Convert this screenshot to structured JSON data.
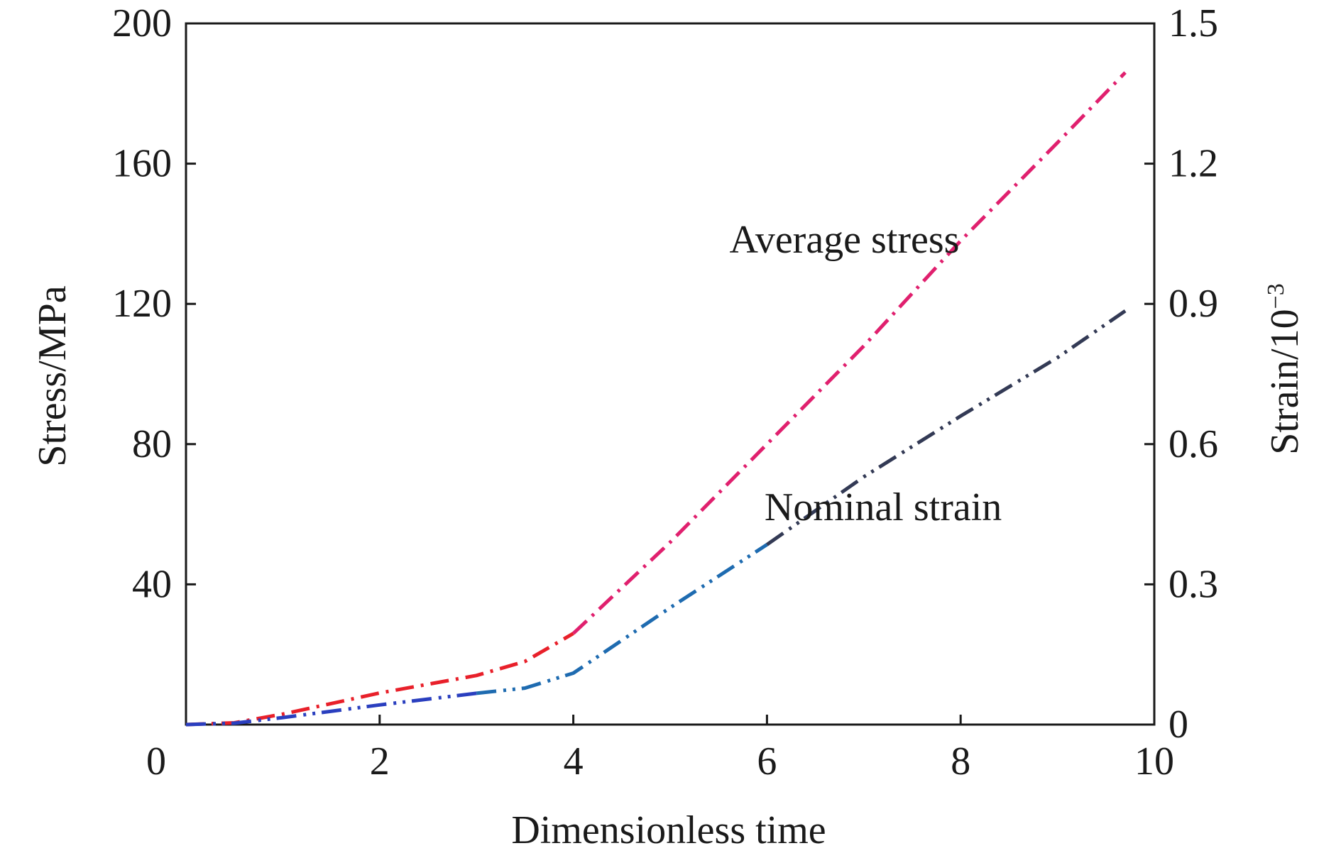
{
  "chart_data": {
    "type": "line",
    "xlabel": "Dimensionless time",
    "ylabel": "Stress/MPa",
    "y2label": "Strain/10",
    "y2label_exponent": "−3",
    "xlim": [
      0,
      10
    ],
    "ylim": [
      0,
      200
    ],
    "y2lim": [
      0,
      1.5
    ],
    "x_ticks": [
      "0",
      "2",
      "4",
      "6",
      "8",
      "10"
    ],
    "y_ticks": [
      "40",
      "80",
      "120",
      "160",
      "200"
    ],
    "y2_ticks": [
      "0",
      "0.3",
      "0.6",
      "0.9",
      "1.2",
      "1.5"
    ],
    "grid": false,
    "annotations": [
      {
        "text": "Average stress",
        "series": 0
      },
      {
        "text": "Nominal strain",
        "series": 1
      }
    ],
    "series": [
      {
        "name": "Average stress",
        "axis": "left",
        "colors": [
          "#e8202a",
          "#e0206e"
        ],
        "x": [
          0,
          0.5,
          1.0,
          2.0,
          3.0,
          3.5,
          4.0,
          5.0,
          6.0,
          7.0,
          8.0,
          9.0,
          9.7
        ],
        "y": [
          0,
          0.5,
          3,
          9,
          14,
          18,
          26,
          52,
          80,
          108,
          138,
          166,
          186
        ]
      },
      {
        "name": "Nominal strain",
        "axis": "right",
        "colors": [
          "#2a3fbf",
          "#1e6bb0",
          "#333a55"
        ],
        "x": [
          0,
          0.5,
          1.0,
          2.0,
          3.0,
          3.5,
          4.0,
          5.0,
          6.0,
          7.0,
          8.0,
          9.0,
          9.7
        ],
        "y": [
          0,
          0.003,
          0.015,
          0.042,
          0.067,
          0.078,
          0.11,
          0.25,
          0.385,
          0.53,
          0.66,
          0.785,
          0.885
        ]
      }
    ]
  }
}
